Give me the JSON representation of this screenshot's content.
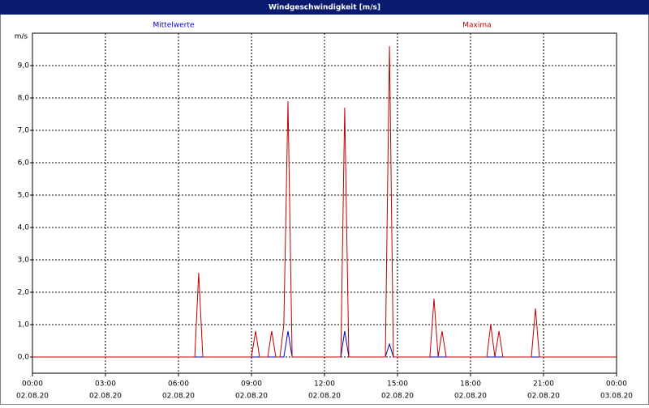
{
  "chart_data": {
    "type": "line",
    "title": "Windgeschwindigkeit [m/s]",
    "y_label": "m/s",
    "x": [
      0,
      6.67,
      6.83,
      7.0,
      9.0,
      9.17,
      9.33,
      9.67,
      9.83,
      10.0,
      10.17,
      10.33,
      10.5,
      10.67,
      12.67,
      12.83,
      13.0,
      14.5,
      14.67,
      14.83,
      16.33,
      16.5,
      16.67,
      16.83,
      17.0,
      18.67,
      18.83,
      19.0,
      19.17,
      19.33,
      20.5,
      20.67,
      20.83,
      24
    ],
    "series": [
      {
        "name": "Mittelwerte",
        "color": "#0000c0",
        "values": [
          0,
          0,
          0,
          0,
          0,
          0,
          0,
          0,
          0,
          0,
          0,
          0,
          0.8,
          0,
          0,
          0.8,
          0,
          0,
          0.4,
          0,
          0,
          0,
          0,
          0,
          0,
          0,
          0,
          0,
          0,
          0,
          0,
          0,
          0,
          0
        ]
      },
      {
        "name": "Maxima",
        "color": "#c00000",
        "values": [
          0,
          0,
          2.6,
          0,
          0,
          0.8,
          0,
          0,
          0.8,
          0,
          0,
          1.0,
          7.9,
          0,
          0,
          7.7,
          0,
          0,
          9.6,
          0,
          0,
          1.8,
          0,
          0.8,
          0,
          0,
          1.0,
          0,
          0.8,
          0,
          0,
          1.5,
          0,
          0
        ]
      }
    ],
    "xlim": [
      0,
      24
    ],
    "xticks": [
      {
        "value": 0,
        "label": "00:00",
        "sublabel": "02.08.20"
      },
      {
        "value": 3,
        "label": "03:00",
        "sublabel": "02.08.20"
      },
      {
        "value": 6,
        "label": "06:00",
        "sublabel": "02.08.20"
      },
      {
        "value": 9,
        "label": "09:00",
        "sublabel": "02.08.20"
      },
      {
        "value": 12,
        "label": "12:00",
        "sublabel": "02.08.20"
      },
      {
        "value": 15,
        "label": "15:00",
        "sublabel": "02.08.20"
      },
      {
        "value": 18,
        "label": "18:00",
        "sublabel": "02.08.20"
      },
      {
        "value": 21,
        "label": "21:00",
        "sublabel": "02.08.20"
      },
      {
        "value": 24,
        "label": "00:00",
        "sublabel": "03.08.20"
      }
    ],
    "ylim": [
      -0.5,
      10
    ],
    "yticks": [
      {
        "value": 0,
        "label": "0,0"
      },
      {
        "value": 1,
        "label": "1,0"
      },
      {
        "value": 2,
        "label": "2,0"
      },
      {
        "value": 3,
        "label": "3,0"
      },
      {
        "value": 4,
        "label": "4,0"
      },
      {
        "value": 5,
        "label": "5,0"
      },
      {
        "value": 6,
        "label": "6,0"
      },
      {
        "value": 7,
        "label": "7,0"
      },
      {
        "value": 8,
        "label": "8,0"
      },
      {
        "value": 9,
        "label": "9,0"
      }
    ],
    "grid": true
  }
}
